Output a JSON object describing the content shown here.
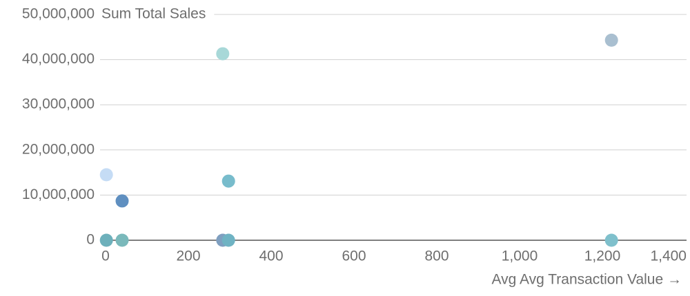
{
  "chart_data": {
    "type": "scatter",
    "y_label": "Sum Total Sales",
    "x_label": "Avg Avg Transaction Value →",
    "x": [
      2,
      40,
      283,
      297,
      1222,
      2,
      40,
      283,
      297,
      1222
    ],
    "values": [
      14500000,
      8700000,
      41300000,
      13100000,
      44300000,
      0,
      0,
      0,
      0,
      0
    ],
    "colors": [
      "#c5dcf5",
      "#5f8fc0",
      "#a8d8d8",
      "#78bccc",
      "#a9bfd0",
      "#6db0bb",
      "#7ab9bb",
      "#7f9fc0",
      "#6fb3c3",
      "#7fc0cc"
    ],
    "xlim": [
      0,
      1400
    ],
    "ylim": [
      0,
      50000000
    ],
    "xticks": [
      0,
      200,
      400,
      600,
      800,
      {
        "value": 1000,
        "label": "1,000"
      },
      {
        "value": 1200,
        "label": "1,200"
      },
      {
        "value": 1400,
        "label": "1,400"
      }
    ],
    "yticks": [
      0,
      {
        "value": 10000000,
        "label": "10,000,000"
      },
      {
        "value": 20000000,
        "label": "20,000,000"
      },
      {
        "value": 30000000,
        "label": "30,000,000"
      },
      {
        "value": 40000000,
        "label": "40,000,000"
      },
      {
        "value": 50000000,
        "label": "50,000,000"
      }
    ],
    "grid": true
  }
}
